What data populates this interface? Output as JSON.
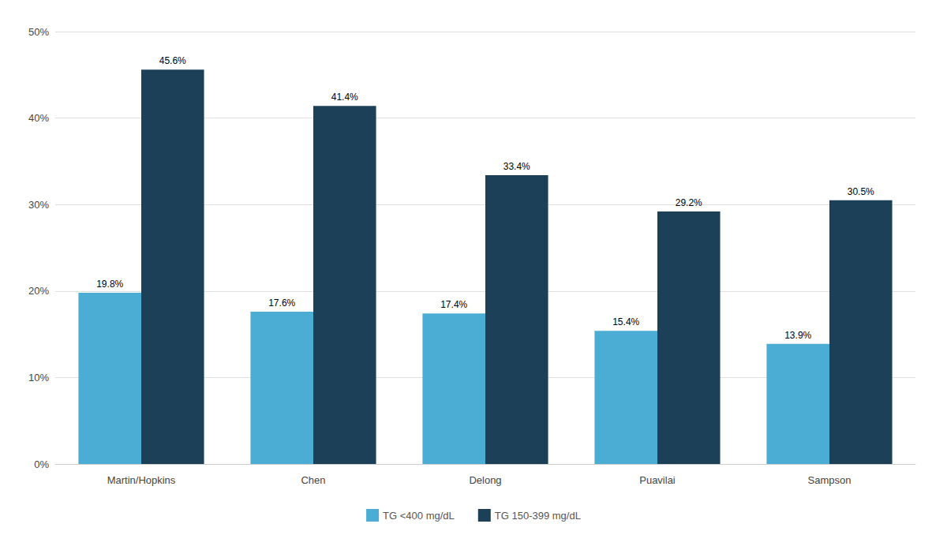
{
  "chart_data": {
    "type": "bar",
    "categories": [
      "Martin/Hopkins",
      "Chen",
      "Delong",
      "Puavilai",
      "Sampson"
    ],
    "series": [
      {
        "name": "TG <400 mg/dL",
        "color": "#4BADD4",
        "values": [
          19.8,
          17.6,
          17.4,
          15.4,
          13.9
        ],
        "value_labels": [
          "19.8%",
          "17.6%",
          "17.4%",
          "15.4%",
          "13.9%"
        ]
      },
      {
        "name": "TG 150-399 mg/dL",
        "color": "#1C4057",
        "values": [
          45.6,
          41.4,
          33.4,
          29.2,
          30.5
        ],
        "value_labels": [
          "45.6%",
          "41.4%",
          "33.4%",
          "29.2%",
          "30.5%"
        ]
      }
    ],
    "ylim": [
      0,
      50
    ],
    "yticks": [
      {
        "value": 0,
        "label": "0%"
      },
      {
        "value": 10,
        "label": "10%"
      },
      {
        "value": 20,
        "label": "20%"
      },
      {
        "value": 30,
        "label": "30%"
      },
      {
        "value": 40,
        "label": "40%"
      },
      {
        "value": 50,
        "label": "50%"
      }
    ],
    "grid": true,
    "legend": "bottom",
    "data_labels": true
  }
}
